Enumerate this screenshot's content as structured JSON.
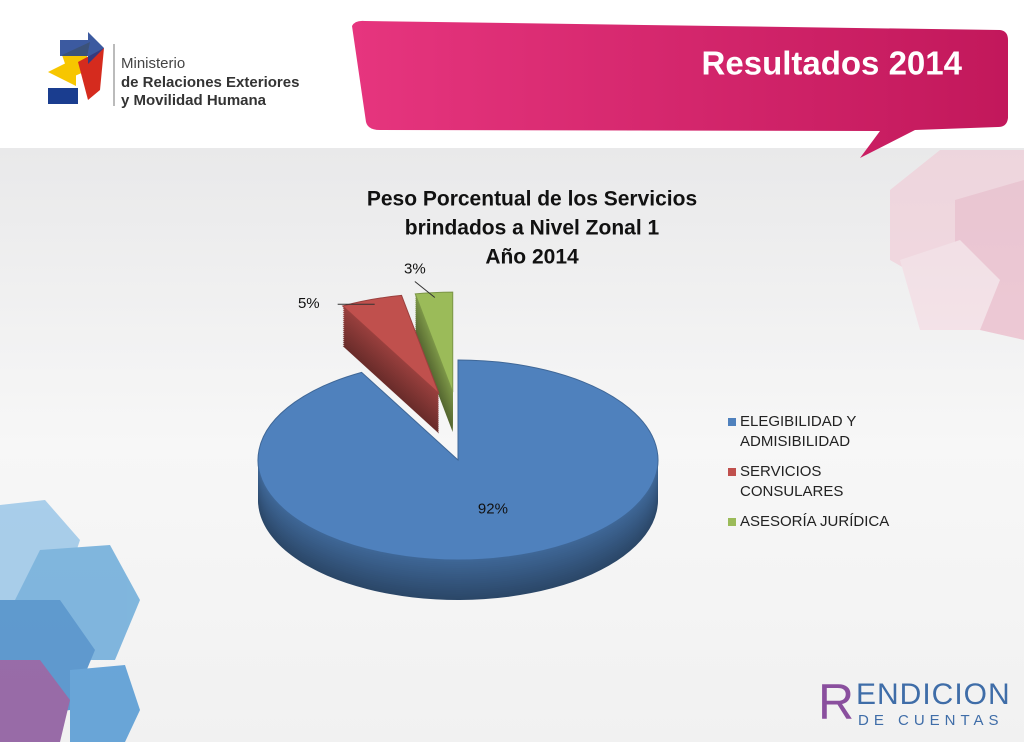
{
  "header": {
    "org_line1": "Ministerio",
    "org_line2": "de Relaciones Exteriores",
    "org_line3": "y Movilidad Humana",
    "slide_title": "Resultados 2014"
  },
  "footer": {
    "logo_initial": "R",
    "logo_word": "ENDICION",
    "logo_sub": "DE CUENTAS"
  },
  "chart_data": {
    "type": "pie",
    "title": [
      "Peso Porcentual de los Servicios",
      "brindados a Nivel Zonal 1",
      "Año 2014"
    ],
    "categories": [
      "ELEGIBILIDAD Y ADMISIBILIDAD",
      "SERVICIOS CONSULARES",
      "ASESORÍA JURÍDICA"
    ],
    "values": [
      92,
      5,
      3
    ],
    "value_labels": [
      "92%",
      "5%",
      "3%"
    ],
    "colors": [
      "#4f81bd",
      "#c0504d",
      "#9bbb59"
    ],
    "legend": "right"
  }
}
